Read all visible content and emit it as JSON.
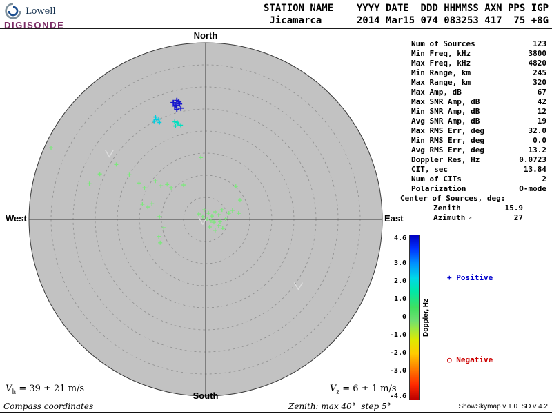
{
  "logo": {
    "brand": "Lowell",
    "product": "DIGISONDE"
  },
  "header": {
    "line1": "STATION NAME    YYYY DATE  DDD HHMMSS AXN PPS IGP",
    "line2": " Jicamarca      2014 Mar15 074 083253 417  75 +8G"
  },
  "compass": {
    "north": "North",
    "south": "South",
    "east": "East",
    "west": "West"
  },
  "stats": {
    "rows": [
      {
        "label": "Num of Sources",
        "value": "123",
        "indent": 1
      },
      {
        "label": "Min Freq, kHz",
        "value": "3800",
        "indent": 1
      },
      {
        "label": "Max Freq, kHz",
        "value": "4820",
        "indent": 1
      },
      {
        "label": "Min Range, km",
        "value": "245",
        "indent": 1
      },
      {
        "label": "Max Range, km",
        "value": "320",
        "indent": 1
      },
      {
        "label": "Max Amp, dB",
        "value": "67",
        "indent": 1
      },
      {
        "label": "Max SNR Amp, dB",
        "value": "42",
        "indent": 1
      },
      {
        "label": "Min SNR Amp, dB",
        "value": "12",
        "indent": 1
      },
      {
        "label": "Avg SNR Amp, dB",
        "value": "19",
        "indent": 1
      },
      {
        "label": "Max RMS Err, deg",
        "value": "32.0",
        "indent": 1
      },
      {
        "label": "Min RMS Err, deg",
        "value": "0.0",
        "indent": 1
      },
      {
        "label": "Avg RMS Err, deg",
        "value": "13.2",
        "indent": 1
      },
      {
        "label": "Doppler Res, Hz",
        "value": "0.0723",
        "indent": 1
      },
      {
        "label": "CIT, sec",
        "value": "13.84",
        "indent": 1
      },
      {
        "label": "Num of CITs",
        "value": "2",
        "indent": 1
      },
      {
        "label": "Polarization",
        "value": "O-mode",
        "indent": 1
      },
      {
        "label": "Center of Sources, deg:",
        "value": "",
        "indent": 0
      },
      {
        "label": "Zenith",
        "value": "15.9",
        "indent": 2
      },
      {
        "label": "Azimuth",
        "value": "27",
        "indent": 2,
        "icon": "↗"
      }
    ]
  },
  "legend": {
    "positive": {
      "symbol": "+",
      "label": "Positive",
      "color": "#0000cc"
    },
    "negative": {
      "symbol": "○",
      "label": "Negative",
      "color": "#cc0000"
    }
  },
  "footer": {
    "vh": {
      "symbol": "V",
      "sub": "h",
      "text": " = 39 ± 21 m/s"
    },
    "vz": {
      "symbol": "V",
      "sub": "z",
      "text": " = 6 ± 1 m/s"
    },
    "coords_note": "Compass coordinates",
    "zenith_note": "Zenith: max 40°  step 5°",
    "version": "ShowSkymap v 1.0  SD v 4.2"
  },
  "chart_data": {
    "type": "scatter",
    "projection": "polar skymap, compass coordinates (North up, East right)",
    "zenith_max_deg": 40,
    "zenith_step_deg": 5,
    "plot_bg": "#c2c2c2",
    "colorbar": {
      "label": "Doppler, Hz",
      "min": -4.6,
      "max": 4.6,
      "ticks": [
        "4.6",
        "3.0",
        "2.0",
        "1.0",
        "0",
        "-1.0",
        "-2.0",
        "-3.0",
        "-4.6"
      ],
      "gradient_top_to_bottom": [
        {
          "pos": 0,
          "color": "#0000c0"
        },
        {
          "pos": 8,
          "color": "#0030ff"
        },
        {
          "pos": 17,
          "color": "#0090ff"
        },
        {
          "pos": 26,
          "color": "#00d8e8"
        },
        {
          "pos": 34,
          "color": "#00e8a8"
        },
        {
          "pos": 44,
          "color": "#40e060"
        },
        {
          "pos": 52,
          "color": "#70e070"
        },
        {
          "pos": 58,
          "color": "#a8e838"
        },
        {
          "pos": 64,
          "color": "#e0e800"
        },
        {
          "pos": 72,
          "color": "#ffcc00"
        },
        {
          "pos": 82,
          "color": "#ff7700"
        },
        {
          "pos": 91,
          "color": "#ff2a00"
        },
        {
          "pos": 100,
          "color": "#bb0000"
        }
      ]
    },
    "series": [
      {
        "name": "sources, doppler ≈ +4.5 Hz",
        "color": "#1616cd",
        "marker": "plus-bold",
        "marker_size": 4,
        "stroke_width": 1.8,
        "points": [
          [
            -0.163,
            -0.673
          ],
          [
            -0.148,
            -0.654
          ],
          [
            -0.175,
            -0.642
          ],
          [
            -0.14,
            -0.63
          ],
          [
            -0.163,
            -0.623
          ],
          [
            -0.183,
            -0.661
          ],
          [
            -0.152,
            -0.665
          ],
          [
            -0.168,
            -0.645
          ]
        ]
      },
      {
        "name": "sources, doppler ≈ +1.7 Hz",
        "color": "#00cfe0",
        "marker": "plus",
        "marker_size": 3,
        "stroke_width": 1.6,
        "points": [
          [
            -0.284,
            -0.58
          ],
          [
            -0.265,
            -0.568
          ],
          [
            -0.292,
            -0.556
          ],
          [
            -0.261,
            -0.549
          ],
          [
            -0.276,
            -0.565
          ]
        ]
      },
      {
        "name": "sources, doppler ≈ +1.2 Hz",
        "color": "#00e0c0",
        "marker": "plus",
        "marker_size": 3,
        "stroke_width": 1.6,
        "points": [
          [
            -0.175,
            -0.553
          ],
          [
            -0.156,
            -0.541
          ],
          [
            -0.14,
            -0.533
          ],
          [
            -0.171,
            -0.529
          ],
          [
            -0.16,
            -0.549
          ]
        ]
      },
      {
        "name": "sources, doppler ≈ +0.3 Hz",
        "color": "#7ce87c",
        "marker": "plus",
        "marker_size": 3,
        "stroke_width": 1.3,
        "points": [
          [
            -0.875,
            -0.405
          ],
          [
            -0.658,
            -0.202
          ],
          [
            -0.599,
            -0.257
          ],
          [
            -0.506,
            -0.311
          ],
          [
            -0.432,
            -0.253
          ],
          [
            -0.377,
            -0.206
          ],
          [
            -0.346,
            -0.179
          ],
          [
            -0.284,
            -0.218
          ],
          [
            -0.253,
            -0.191
          ],
          [
            -0.218,
            -0.198
          ],
          [
            -0.195,
            -0.179
          ],
          [
            -0.125,
            -0.195
          ],
          [
            -0.027,
            -0.35
          ],
          [
            0.171,
            -0.187
          ],
          [
            0.195,
            -0.109
          ],
          [
            -0.358,
            -0.086
          ],
          [
            -0.327,
            -0.07
          ],
          [
            -0.304,
            -0.089
          ],
          [
            -0.261,
            -0.016
          ],
          [
            -0.237,
            0.047
          ],
          [
            -0.265,
            0.097
          ],
          [
            -0.257,
            0.132
          ],
          [
            -0.008,
            -0.054
          ],
          [
            0.016,
            -0.035
          ],
          [
            0.035,
            -0.019
          ],
          [
            0.054,
            -0.043
          ],
          [
            0.074,
            -0.027
          ],
          [
            0.093,
            -0.054
          ],
          [
            0.113,
            -0.004
          ],
          [
            0.082,
            0.012
          ],
          [
            0.047,
            0.016
          ],
          [
            0.008,
            0.0
          ],
          [
            0.132,
            -0.035
          ],
          [
            0.152,
            -0.051
          ],
          [
            0.187,
            -0.035
          ],
          [
            0.023,
            0.043
          ],
          [
            0.054,
            0.062
          ],
          [
            0.097,
            0.051
          ],
          [
            0.074,
            0.035
          ],
          [
            0.031,
            0.008
          ],
          [
            -0.016,
            -0.016
          ],
          [
            -0.039,
            -0.031
          ]
        ]
      }
    ],
    "arrow_marks": [
      {
        "u": -0.545,
        "v": -0.374
      },
      {
        "u": -0.016,
        "v": 0.008
      },
      {
        "u": 0.525,
        "v": 0.377
      }
    ]
  }
}
